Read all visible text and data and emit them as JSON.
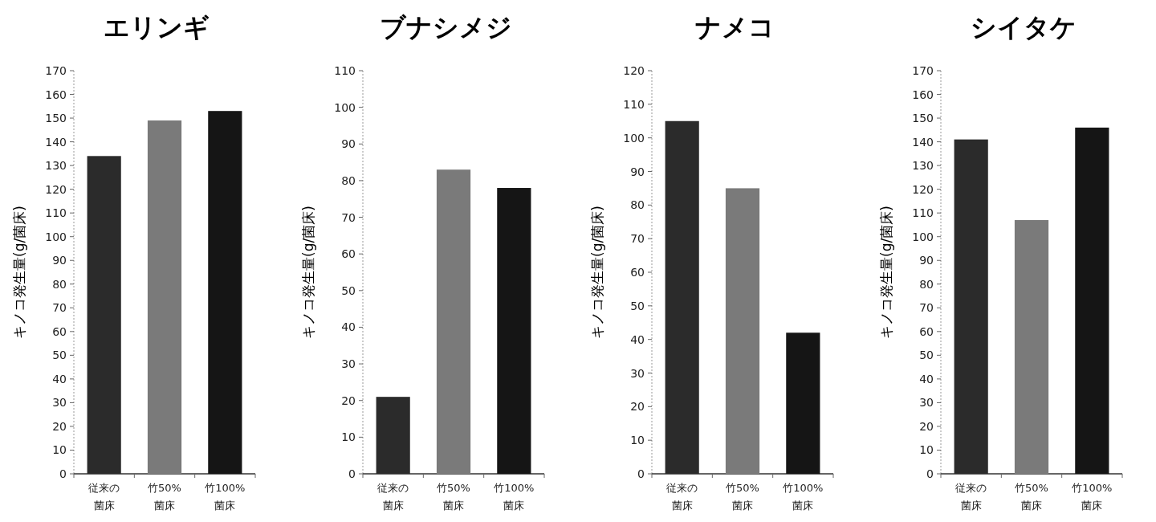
{
  "chart_data": [
    {
      "type": "bar",
      "title": "エリンギ",
      "ylabel": "キノコ発生量(g/菌床)",
      "categories": [
        "従来の菌床",
        "竹50%菌床",
        "竹100%菌床"
      ],
      "values": [
        134,
        149,
        153
      ],
      "colors": [
        "#2b2b2b",
        "#7a7a7a",
        "#151515"
      ],
      "ylim": [
        0,
        170
      ],
      "yticks": [
        0,
        10,
        20,
        30,
        40,
        50,
        60,
        70,
        80,
        90,
        100,
        110,
        120,
        130,
        140,
        150,
        160,
        170
      ]
    },
    {
      "type": "bar",
      "title": "ブナシメジ",
      "ylabel": "キノコ発生量(g/菌床)",
      "categories": [
        "従来の菌床",
        "竹50%菌床",
        "竹100%菌床"
      ],
      "values": [
        21,
        83,
        78
      ],
      "colors": [
        "#2b2b2b",
        "#7a7a7a",
        "#151515"
      ],
      "ylim": [
        0,
        110
      ],
      "yticks": [
        0,
        10,
        20,
        30,
        40,
        50,
        60,
        70,
        80,
        90,
        100,
        110
      ]
    },
    {
      "type": "bar",
      "title": "ナメコ",
      "ylabel": "キノコ発生量(g/菌床)",
      "categories": [
        "従来の菌床",
        "竹50%菌床",
        "竹100%菌床"
      ],
      "values": [
        105,
        85,
        42
      ],
      "colors": [
        "#2b2b2b",
        "#7a7a7a",
        "#151515"
      ],
      "ylim": [
        0,
        120
      ],
      "yticks": [
        0,
        10,
        20,
        30,
        40,
        50,
        60,
        70,
        80,
        90,
        100,
        110,
        120
      ]
    },
    {
      "type": "bar",
      "title": "シイタケ",
      "ylabel": "キノコ発生量(g/菌床)",
      "categories": [
        "従来の菌床",
        "竹50%菌床",
        "竹100%菌床"
      ],
      "values": [
        141,
        107,
        146
      ],
      "colors": [
        "#2b2b2b",
        "#7a7a7a",
        "#151515"
      ],
      "ylim": [
        0,
        170
      ],
      "yticks": [
        0,
        10,
        20,
        30,
        40,
        50,
        60,
        70,
        80,
        90,
        100,
        110,
        120,
        130,
        140,
        150,
        160,
        170
      ]
    }
  ]
}
